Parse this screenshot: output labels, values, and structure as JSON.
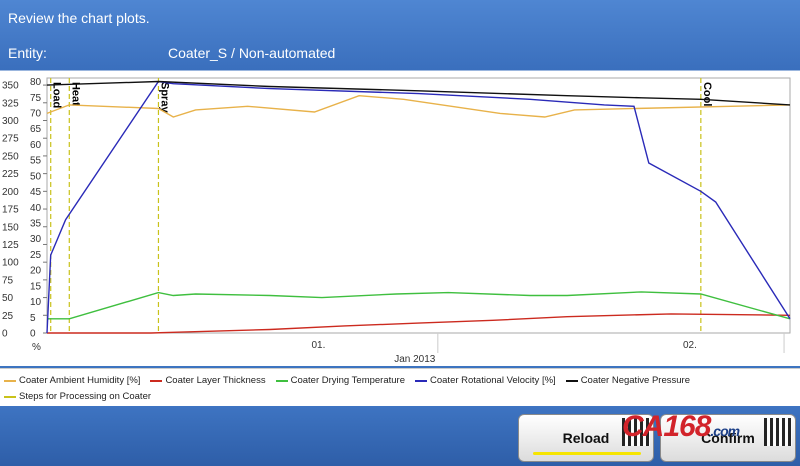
{
  "header": {
    "title": "Review the chart plots.",
    "entity_label": "Entity:",
    "entity_value": "Coater_S / Non-automated"
  },
  "chart_data": {
    "type": "line",
    "left_axis": {
      "ticks": [
        0,
        25,
        50,
        75,
        100,
        125,
        150,
        175,
        200,
        225,
        250,
        275,
        300,
        325,
        350
      ]
    },
    "right_axis": {
      "ticks": [
        0,
        5,
        10,
        15,
        20,
        25,
        30,
        35,
        40,
        45,
        50,
        55,
        60,
        65,
        70,
        75,
        80
      ],
      "unit_label": "%"
    },
    "x_axis": {
      "tick_labels": [
        "01.",
        "02."
      ],
      "xlabel": "Jan 2013"
    },
    "x_range": [
      0,
      100
    ],
    "y_range": [
      0,
      360
    ],
    "series": [
      {
        "name": "Coater Ambient Humidity [%]",
        "color": "#e8b24a",
        "x": [
          0,
          3,
          15,
          17,
          20,
          27,
          36,
          42,
          48,
          61,
          67,
          71,
          100
        ],
        "y": [
          310,
          322,
          317,
          305,
          315,
          320,
          312,
          335,
          330,
          310,
          305,
          315,
          322
        ]
      },
      {
        "name": "Coater Layer Thickness",
        "color": "#cc2a1f",
        "x": [
          0,
          14,
          17,
          30,
          40,
          50,
          60,
          70,
          84,
          100
        ],
        "y": [
          0,
          0,
          1,
          5,
          10,
          14,
          18,
          23,
          27,
          25
        ]
      },
      {
        "name": "Coater Drying Temperature",
        "color": "#3fbf3f",
        "x": [
          0,
          3,
          15,
          17,
          20,
          30,
          37,
          47,
          54,
          65,
          70,
          80,
          88,
          100
        ],
        "y": [
          20,
          20,
          57,
          53,
          55,
          53,
          50,
          55,
          57,
          53,
          53,
          58,
          55,
          20
        ]
      },
      {
        "name": "Coater Rotational Velocity [%]",
        "color": "#2a2ab8",
        "x": [
          0,
          0.5,
          2.5,
          15,
          17,
          30,
          50,
          65,
          75,
          79,
          81,
          88,
          90,
          100
        ],
        "y": [
          0,
          110,
          160,
          355,
          352,
          345,
          338,
          330,
          322,
          320,
          240,
          200,
          185,
          20
        ]
      },
      {
        "name": "Coater Negative Pressure",
        "color": "#111111",
        "x": [
          0,
          15,
          30,
          50,
          70,
          80,
          88,
          100
        ],
        "y": [
          350,
          355,
          348,
          342,
          335,
          332,
          330,
          322
        ]
      }
    ],
    "steps_series": {
      "name": "Steps for Processing on Coater",
      "color": "#c9c21a"
    },
    "step_markers": [
      {
        "label": "Load",
        "x": 0.5
      },
      {
        "label": "Heat",
        "x": 3
      },
      {
        "label": "Spray",
        "x": 15
      },
      {
        "label": "Cool",
        "x": 88
      }
    ]
  },
  "buttons": {
    "reload_label": "Reload",
    "accept_label": "Confirm"
  },
  "watermark": {
    "text": "CA168",
    "suffix": ".com"
  }
}
